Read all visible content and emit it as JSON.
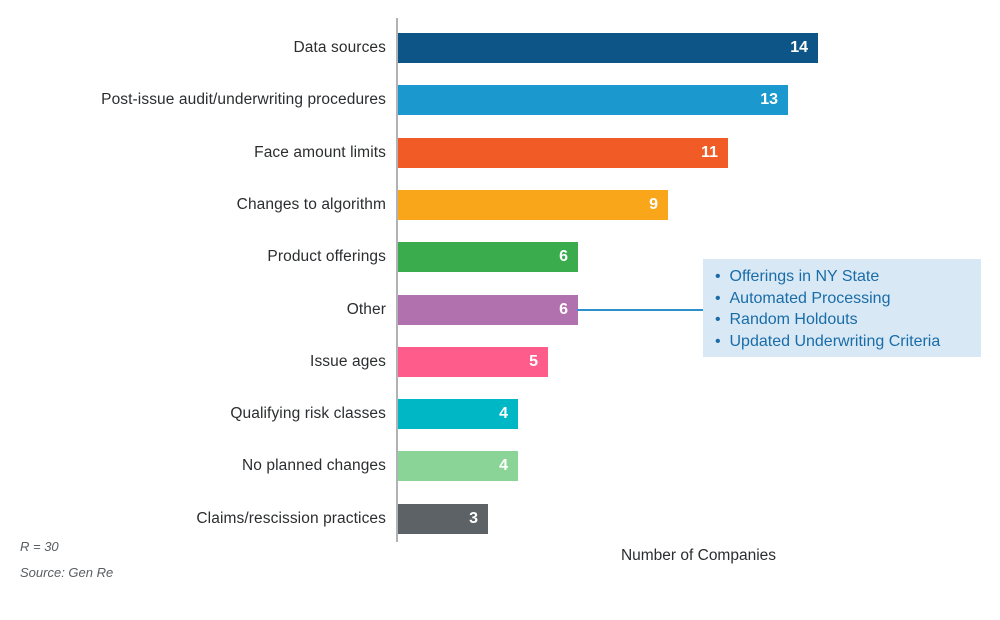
{
  "chart": {
    "footnote_r": "R = 30",
    "footnote_source": "Source: Gen Re",
    "axis_color": "#b0b2b5",
    "annotation_bg": "#d8e9f5",
    "annotation_text_color": "#1a6ca8",
    "connector_color": "#2e90ca",
    "value_label_color": "#ffffff"
  },
  "chart_data": {
    "type": "bar",
    "orientation": "horizontal",
    "title": "",
    "xlabel": "Number of Companies",
    "ylabel": "",
    "xlim": [
      0,
      20
    ],
    "grid": false,
    "legend": false,
    "categories": [
      "Data sources",
      "Post-issue audit/underwriting procedures",
      "Face amount limits",
      "Changes to algorithm",
      "Product offerings",
      "Other",
      "Issue ages",
      "Qualifying risk classes",
      "No planned changes",
      "Claims/rescission practices"
    ],
    "values": [
      14,
      13,
      11,
      9,
      6,
      6,
      5,
      4,
      4,
      3
    ],
    "bar_colors": [
      "#0e5587",
      "#1b98ce",
      "#f15b25",
      "#faa61b",
      "#3bac4d",
      "#b170ae",
      "#fe5c8b",
      "#00b7c6",
      "#8ad497",
      "#5d6266"
    ],
    "annotation": {
      "target_category": "Other",
      "items": [
        "Offerings in NY State",
        "Automated Processing",
        "Random Holdouts",
        "Updated Underwriting Criteria"
      ]
    }
  }
}
